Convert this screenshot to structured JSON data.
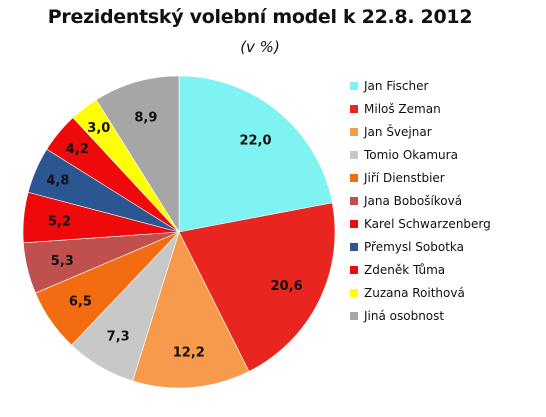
{
  "chart_data": {
    "type": "pie",
    "title": "Prezidentský volební model k  22.8. 2012",
    "subtitle": "(v %)",
    "legend_position": "right",
    "series": [
      {
        "name": "Jan Fischer",
        "value": 22.0,
        "label": "22,0",
        "color": "#7ef3f2"
      },
      {
        "name": "Miloš Zeman",
        "value": 20.6,
        "label": "20,6",
        "color": "#e8261f"
      },
      {
        "name": "Jan Švejnar",
        "value": 12.2,
        "label": "12,2",
        "color": "#f79a4b"
      },
      {
        "name": "Tomio Okamura",
        "value": 7.3,
        "label": "7,3",
        "color": "#c8c8c8"
      },
      {
        "name": "Jiří Dienstbier",
        "value": 6.5,
        "label": "6,5",
        "color": "#f36c11"
      },
      {
        "name": "Jana Bobošíková",
        "value": 5.3,
        "label": "5,3",
        "color": "#c0504d"
      },
      {
        "name": "Karel Schwarzenberg",
        "value": 5.2,
        "label": "5,2",
        "color": "#ee0a0a"
      },
      {
        "name": "Přemysl Sobotka",
        "value": 4.8,
        "label": "4,8",
        "color": "#2c5691"
      },
      {
        "name": "Zdeněk Tůma",
        "value": 4.2,
        "label": "4,2",
        "color": "#ee0a0a"
      },
      {
        "name": "Zuzana Roithová",
        "value": 3.0,
        "label": "3,0",
        "color": "#ffff00"
      },
      {
        "name": "Jiná osobnost",
        "value": 8.9,
        "label": "8,9",
        "color": "#a6a6a6"
      }
    ]
  }
}
